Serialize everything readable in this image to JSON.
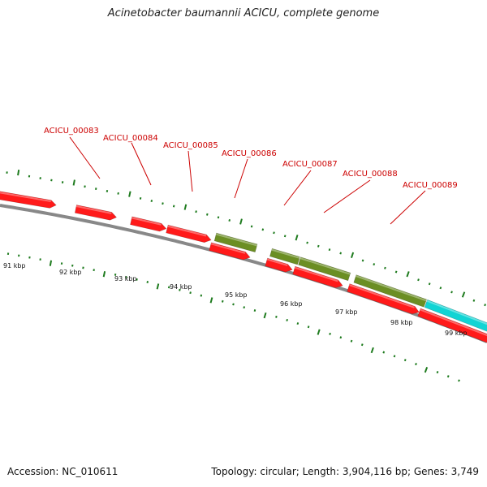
{
  "title": "Acinetobacter baumannii ACICU, complete genome",
  "footer": {
    "accession": "Accession: NC_010611",
    "summary": "Topology: circular; Length: 3,904,116 bp; Genes: 3,749"
  },
  "colors": {
    "gene_forward": "#ff1a1a",
    "gene_other": "#6b8e23",
    "gene_rna": "#11d4d4",
    "label": "#cc0000",
    "tick": "#1e7b1e",
    "backbone": "#888888"
  },
  "scale_labels": [
    "91 kbp",
    "92 kbp",
    "93 kbp",
    "94 kbp",
    "95 kbp",
    "96 kbp",
    "97 kbp",
    "98 kbp",
    "99 kbp"
  ],
  "gene_labels": [
    "ACICU_00083",
    "ACICU_00084",
    "ACICU_00085",
    "ACICU_00086",
    "ACICU_00087",
    "ACICU_00088",
    "ACICU_00089"
  ]
}
